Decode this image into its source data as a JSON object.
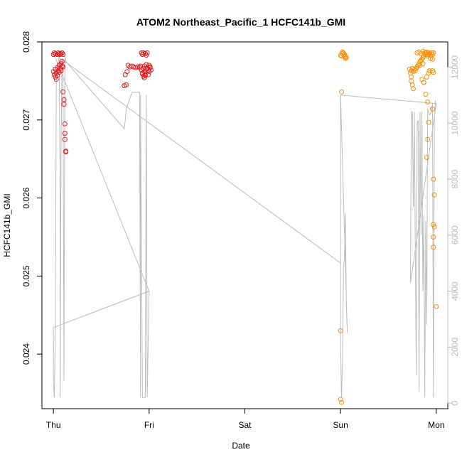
{
  "chart_data": {
    "type": "scatter",
    "title": "ATOM2 Northeast_Pacific_1 HCFC141b_GMI",
    "xlabel": "Date",
    "ylabel": "HCFC141b_GMI",
    "x_tick_labels": [
      "Thu",
      "Fri",
      "Sat",
      "Sun",
      "Mon"
    ],
    "x_range_days": [
      -0.12,
      4.12
    ],
    "ylim": [
      0.0233,
      0.028
    ],
    "y_ticks": [
      "0.024",
      "0.025",
      "0.026",
      "0.027",
      "0.028"
    ],
    "y_tick_values": [
      0.024,
      0.025,
      0.026,
      0.027,
      0.028
    ],
    "y2_range": [
      -200,
      12900
    ],
    "y2_ticks": [
      "0",
      "2000",
      "4000",
      "6000",
      "8000",
      "10000",
      "12000"
    ],
    "y2_tick_values": [
      0,
      2000,
      4000,
      6000,
      8000,
      10000,
      12000
    ],
    "grid": false,
    "colors": {
      "series_1": "#e31a1c",
      "series_2": "#ff8c00",
      "altitude": "#bdbdbd",
      "axis": "#000000",
      "right_axis": "#bdbdbd"
    },
    "series": [
      {
        "color": "#e31a1c",
        "marker": "open-circle",
        "points": [
          [
            0.0,
            0.02784
          ],
          [
            0.01,
            0.02786
          ],
          [
            0.02,
            0.02785
          ],
          [
            0.04,
            0.02784
          ],
          [
            0.05,
            0.02786
          ],
          [
            0.06,
            0.02785
          ],
          [
            0.07,
            0.02784
          ],
          [
            0.08,
            0.02785
          ],
          [
            0.09,
            0.02786
          ],
          [
            0.1,
            0.02784
          ],
          [
            0.0,
            0.02762
          ],
          [
            0.01,
            0.02758
          ],
          [
            0.02,
            0.02765
          ],
          [
            0.03,
            0.0276
          ],
          [
            0.04,
            0.02767
          ],
          [
            0.05,
            0.02763
          ],
          [
            0.06,
            0.0277
          ],
          [
            0.07,
            0.02766
          ],
          [
            0.08,
            0.02772
          ],
          [
            0.09,
            0.02769
          ],
          [
            0.02,
            0.02755
          ],
          [
            0.03,
            0.02752
          ],
          [
            0.04,
            0.02757
          ],
          [
            0.06,
            0.02761
          ],
          [
            0.08,
            0.02763
          ],
          [
            0.09,
            0.02775
          ],
          [
            0.1,
            0.02768
          ],
          [
            0.1,
            0.02736
          ],
          [
            0.11,
            0.02726
          ],
          [
            0.11,
            0.0272
          ],
          [
            0.12,
            0.02695
          ],
          [
            0.12,
            0.02683
          ],
          [
            0.12,
            0.02675
          ],
          [
            0.13,
            0.0266
          ],
          [
            0.13,
            0.02659
          ],
          [
            0.74,
            0.02744
          ],
          [
            0.76,
            0.02745
          ],
          [
            0.75,
            0.02758
          ],
          [
            0.77,
            0.02762
          ],
          [
            0.78,
            0.0277
          ],
          [
            0.8,
            0.02768
          ],
          [
            0.82,
            0.02769
          ],
          [
            0.84,
            0.02768
          ],
          [
            0.86,
            0.02767
          ],
          [
            0.88,
            0.02768
          ],
          [
            0.9,
            0.02767
          ],
          [
            0.91,
            0.02769
          ],
          [
            0.92,
            0.02764
          ],
          [
            0.93,
            0.0276
          ],
          [
            0.94,
            0.02766
          ],
          [
            0.95,
            0.02762
          ],
          [
            0.96,
            0.02758
          ],
          [
            0.97,
            0.02765
          ],
          [
            0.98,
            0.02767
          ],
          [
            0.99,
            0.02764
          ],
          [
            1.0,
            0.0277
          ],
          [
            1.01,
            0.02768
          ],
          [
            1.02,
            0.02764
          ],
          [
            0.92,
            0.02786
          ],
          [
            0.93,
            0.02784
          ],
          [
            0.94,
            0.02786
          ],
          [
            0.96,
            0.02785
          ],
          [
            0.97,
            0.02783
          ],
          [
            0.98,
            0.02786
          ],
          [
            0.94,
            0.02756
          ],
          [
            0.95,
            0.02754
          ],
          [
            0.96,
            0.02757
          ],
          [
            0.99,
            0.02758
          ],
          [
            1.0,
            0.02762
          ],
          [
            0.93,
            0.02759
          ],
          [
            1.01,
            0.02767
          ],
          [
            0.97,
            0.02771
          ],
          [
            0.95,
            0.02769
          ]
        ]
      },
      {
        "color": "#ff8c00",
        "marker": "open-circle",
        "points": [
          [
            3.0,
            0.02783
          ],
          [
            3.01,
            0.02782
          ],
          [
            3.02,
            0.02785
          ],
          [
            3.03,
            0.02786
          ],
          [
            3.04,
            0.02784
          ],
          [
            3.05,
            0.02781
          ],
          [
            3.06,
            0.0278
          ],
          [
            3.02,
            0.02787
          ],
          [
            3.04,
            0.02782
          ],
          [
            3.05,
            0.02779
          ],
          [
            3.01,
            0.02736
          ],
          [
            3.0,
            0.0243
          ],
          [
            3.0,
            0.02342
          ],
          [
            3.01,
            0.02338
          ],
          [
            3.72,
            0.02765
          ],
          [
            3.73,
            0.0276
          ],
          [
            3.74,
            0.02755
          ],
          [
            3.74,
            0.0275
          ],
          [
            3.75,
            0.02745
          ],
          [
            3.76,
            0.0274
          ],
          [
            3.74,
            0.02763
          ],
          [
            3.75,
            0.02766
          ],
          [
            3.76,
            0.02762
          ],
          [
            3.77,
            0.02765
          ],
          [
            3.78,
            0.02763
          ],
          [
            3.79,
            0.02766
          ],
          [
            3.8,
            0.02768
          ],
          [
            3.81,
            0.0277
          ],
          [
            3.82,
            0.02772
          ],
          [
            3.83,
            0.02775
          ],
          [
            3.84,
            0.02776
          ],
          [
            3.85,
            0.02778
          ],
          [
            3.86,
            0.0278
          ],
          [
            3.87,
            0.02782
          ],
          [
            3.88,
            0.02784
          ],
          [
            3.89,
            0.02786
          ],
          [
            3.9,
            0.02784
          ],
          [
            3.91,
            0.02782
          ],
          [
            3.92,
            0.02786
          ],
          [
            3.93,
            0.02785
          ],
          [
            3.94,
            0.02783
          ],
          [
            3.95,
            0.02786
          ],
          [
            3.96,
            0.02784
          ],
          [
            3.97,
            0.02786
          ],
          [
            3.8,
            0.02786
          ],
          [
            3.82,
            0.02787
          ],
          [
            3.84,
            0.02785
          ],
          [
            3.86,
            0.02788
          ],
          [
            3.88,
            0.02786
          ],
          [
            3.9,
            0.02787
          ],
          [
            3.92,
            0.02784
          ],
          [
            3.94,
            0.02779
          ],
          [
            3.96,
            0.02778
          ],
          [
            3.92,
            0.0276
          ],
          [
            3.93,
            0.02763
          ],
          [
            3.96,
            0.02763
          ],
          [
            3.97,
            0.02761
          ],
          [
            3.85,
            0.02752
          ],
          [
            3.87,
            0.02748
          ],
          [
            3.9,
            0.02755
          ],
          [
            3.89,
            0.02733
          ],
          [
            3.83,
            0.0277
          ],
          [
            3.86,
            0.02772
          ],
          [
            3.91,
            0.02723
          ],
          [
            3.96,
            0.02714
          ],
          [
            3.92,
            0.02697
          ],
          [
            3.91,
            0.02675
          ],
          [
            3.9,
            0.02652
          ],
          [
            3.97,
            0.02624
          ],
          [
            3.98,
            0.02604
          ],
          [
            3.97,
            0.02566
          ],
          [
            3.98,
            0.02563
          ],
          [
            3.97,
            0.0255
          ],
          [
            3.97,
            0.02537
          ],
          [
            4.0,
            0.02461
          ]
        ]
      }
    ],
    "altitude_line": [
      [
        0.0,
        2700
      ],
      [
        0.0,
        800
      ],
      [
        0.01,
        200
      ],
      [
        0.02,
        2700
      ],
      [
        0.03,
        11900
      ],
      [
        0.04,
        12100
      ],
      [
        0.05,
        12200
      ],
      [
        0.06,
        12400
      ],
      [
        0.07,
        8000
      ],
      [
        0.07,
        200
      ],
      [
        0.08,
        9000
      ],
      [
        0.09,
        12300
      ],
      [
        0.1,
        12200
      ],
      [
        0.11,
        800
      ],
      [
        0.12,
        12400
      ],
      [
        0.13,
        12200
      ],
      [
        0.74,
        9800
      ],
      [
        0.75,
        10100
      ],
      [
        0.76,
        10500
      ],
      [
        0.78,
        10700
      ],
      [
        0.8,
        10900
      ],
      [
        0.82,
        11100
      ],
      [
        0.84,
        11100
      ],
      [
        0.86,
        11100
      ],
      [
        0.88,
        11100
      ],
      [
        0.9,
        11100
      ],
      [
        0.91,
        200
      ],
      [
        0.91,
        11000
      ],
      [
        0.93,
        200
      ],
      [
        0.96,
        200
      ],
      [
        0.97,
        11000
      ],
      [
        0.98,
        200
      ],
      [
        1.0,
        4000
      ],
      [
        0.0,
        2700
      ],
      [
        1.0,
        4000
      ],
      [
        0.0,
        12500
      ],
      [
        3.0,
        5000
      ],
      [
        3.0,
        11000
      ],
      [
        3.0,
        2000
      ],
      [
        3.01,
        200
      ],
      [
        3.02,
        1500
      ],
      [
        3.03,
        4800
      ],
      [
        3.04,
        5200
      ],
      [
        3.05,
        6800
      ],
      [
        3.06,
        3500
      ],
      [
        3.07,
        2500
      ],
      [
        3.0,
        11000
      ],
      [
        4.0,
        10700
      ],
      [
        3.73,
        4300
      ],
      [
        3.74,
        10400
      ],
      [
        3.75,
        10400
      ],
      [
        3.76,
        7000
      ],
      [
        3.77,
        10400
      ],
      [
        3.79,
        1000
      ],
      [
        3.8,
        10000
      ],
      [
        3.81,
        10100
      ],
      [
        3.82,
        400
      ],
      [
        3.83,
        10400
      ],
      [
        3.84,
        6000
      ],
      [
        3.85,
        10400
      ],
      [
        3.86,
        4000
      ],
      [
        3.87,
        6700
      ],
      [
        3.88,
        200
      ],
      [
        3.89,
        6500
      ],
      [
        3.9,
        2800
      ],
      [
        3.91,
        10500
      ],
      [
        3.93,
        10300
      ],
      [
        3.95,
        10400
      ],
      [
        3.96,
        10700
      ],
      [
        3.97,
        200
      ],
      [
        3.98,
        10100
      ],
      [
        3.99,
        10800
      ],
      [
        4.0,
        10600
      ]
    ]
  }
}
